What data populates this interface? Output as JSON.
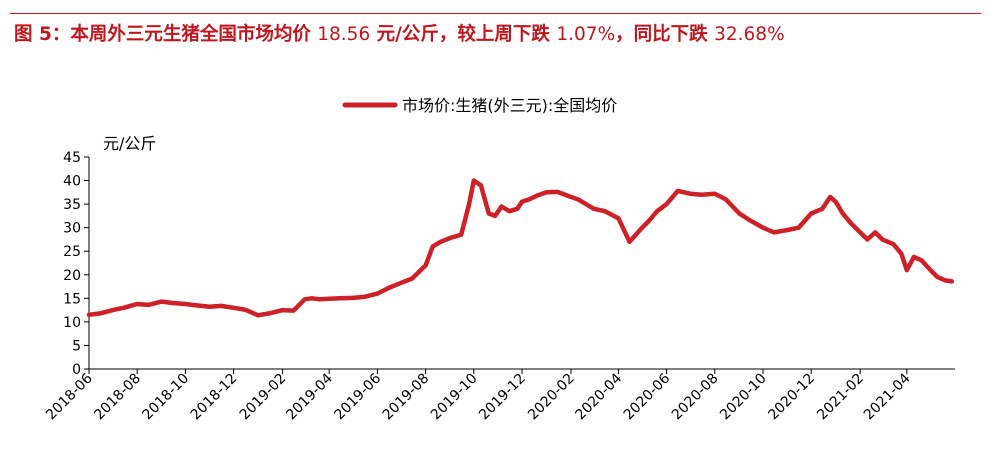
{
  "header": {
    "title_prefix": "图 5：本周外三元生猪全国市场均价 ",
    "price": "18.56",
    "title_mid1": " 元/公斤，较上周下跌 ",
    "wow_change": "1.07%",
    "title_mid2": "，同比下跌 ",
    "yoy_change": "32.68%"
  },
  "colors": {
    "accent": "#c0161d",
    "series_line": "#cd2027",
    "axis": "#000000"
  },
  "chart_data": {
    "type": "line",
    "title": "",
    "ylabel": "元/公斤",
    "xlabel": "",
    "ylim": [
      0,
      45
    ],
    "yticks": [
      0,
      5,
      10,
      15,
      20,
      25,
      30,
      35,
      40,
      45
    ],
    "xlim": [
      "2018-06-01",
      "2021-06-01"
    ],
    "xticks": [
      "2018-06",
      "2018-08",
      "2018-10",
      "2018-12",
      "2019-02",
      "2019-04",
      "2019-06",
      "2019-08",
      "2019-10",
      "2019-12",
      "2020-02",
      "2020-04",
      "2020-06",
      "2020-08",
      "2020-10",
      "2020-12",
      "2021-02",
      "2021-04"
    ],
    "legend": "top-center",
    "grid": false,
    "series": [
      {
        "name": "市场价:生猪(外三元):全国均价",
        "x": [
          "2018-06-01",
          "2018-06-15",
          "2018-07-01",
          "2018-07-15",
          "2018-08-01",
          "2018-08-15",
          "2018-09-01",
          "2018-09-15",
          "2018-10-01",
          "2018-10-15",
          "2018-11-01",
          "2018-11-15",
          "2018-12-01",
          "2018-12-15",
          "2019-01-01",
          "2019-01-15",
          "2019-02-01",
          "2019-02-15",
          "2019-03-01",
          "2019-03-10",
          "2019-03-20",
          "2019-04-01",
          "2019-04-15",
          "2019-05-01",
          "2019-05-15",
          "2019-06-01",
          "2019-06-15",
          "2019-07-01",
          "2019-07-15",
          "2019-08-01",
          "2019-08-10",
          "2019-08-20",
          "2019-09-01",
          "2019-09-15",
          "2019-09-25",
          "2019-10-01",
          "2019-10-10",
          "2019-10-20",
          "2019-10-28",
          "2019-11-05",
          "2019-11-15",
          "2019-11-25",
          "2019-12-01",
          "2019-12-10",
          "2019-12-20",
          "2020-01-01",
          "2020-01-15",
          "2020-02-01",
          "2020-02-10",
          "2020-02-20",
          "2020-03-01",
          "2020-03-15",
          "2020-04-01",
          "2020-04-15",
          "2020-05-01",
          "2020-05-10",
          "2020-05-20",
          "2020-06-01",
          "2020-06-15",
          "2020-07-01",
          "2020-07-15",
          "2020-08-01",
          "2020-08-15",
          "2020-09-01",
          "2020-09-15",
          "2020-10-01",
          "2020-10-15",
          "2020-11-01",
          "2020-11-15",
          "2020-12-01",
          "2020-12-15",
          "2020-12-25",
          "2021-01-01",
          "2021-01-10",
          "2021-01-20",
          "2021-02-01",
          "2021-02-10",
          "2021-02-20",
          "2021-03-01",
          "2021-03-15",
          "2021-03-25",
          "2021-04-01",
          "2021-04-10",
          "2021-04-20",
          "2021-05-01",
          "2021-05-10",
          "2021-05-20",
          "2021-05-28"
        ],
        "y": [
          11.5,
          11.8,
          12.5,
          13.0,
          13.8,
          13.6,
          14.3,
          14.0,
          13.8,
          13.5,
          13.2,
          13.4,
          13.0,
          12.6,
          11.4,
          11.8,
          12.5,
          12.4,
          14.8,
          15.0,
          14.8,
          14.9,
          15.0,
          15.1,
          15.3,
          16.0,
          17.2,
          18.3,
          19.2,
          22.0,
          26.0,
          27.0,
          27.8,
          28.5,
          35.0,
          40.0,
          39.0,
          33.0,
          32.5,
          34.5,
          33.5,
          34.0,
          35.5,
          36.0,
          36.8,
          37.5,
          37.6,
          36.5,
          36.0,
          35.0,
          34.0,
          33.5,
          32.0,
          27.0,
          30.0,
          31.5,
          33.5,
          35.0,
          37.8,
          37.2,
          37.0,
          37.2,
          36.0,
          33.0,
          31.5,
          30.0,
          29.0,
          29.5,
          30.0,
          33.0,
          34.0,
          36.5,
          35.5,
          33.0,
          31.0,
          29.0,
          27.5,
          29.0,
          27.5,
          26.5,
          24.5,
          21.0,
          23.8,
          23.0,
          21.0,
          19.5,
          18.8,
          18.6
        ]
      }
    ]
  }
}
